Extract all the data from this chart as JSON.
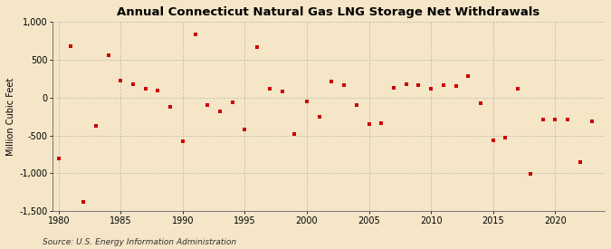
{
  "title": "Annual Connecticut Natural Gas LNG Storage Net Withdrawals",
  "ylabel": "Million Cubic Feet",
  "source": "Source: U.S. Energy Information Administration",
  "background_color": "#f5e6c8",
  "marker_color": "#cc0000",
  "years": [
    1980,
    1981,
    1982,
    1983,
    1984,
    1985,
    1986,
    1987,
    1988,
    1989,
    1990,
    1991,
    1992,
    1993,
    1994,
    1995,
    1996,
    1997,
    1998,
    1999,
    2000,
    2001,
    2002,
    2003,
    2004,
    2005,
    2006,
    2007,
    2008,
    2009,
    2010,
    2011,
    2012,
    2013,
    2014,
    2015,
    2016,
    2017,
    2018,
    2019,
    2020,
    2021,
    2022,
    2023
  ],
  "values": [
    -800,
    680,
    -1380,
    -370,
    560,
    220,
    170,
    120,
    90,
    -120,
    -580,
    830,
    -100,
    -180,
    -60,
    -420,
    660,
    110,
    80,
    -480,
    -50,
    -260,
    210,
    160,
    -100,
    -350,
    -340,
    130,
    180,
    160,
    110,
    160,
    150,
    280,
    -80,
    -560,
    -530,
    110,
    -1010,
    -290,
    -290,
    -290,
    -850,
    -310
  ],
  "xlim": [
    1979.5,
    2024
  ],
  "ylim": [
    -1500,
    1000
  ],
  "yticks": [
    -1500,
    -1000,
    -500,
    0,
    500,
    1000
  ],
  "xticks": [
    1980,
    1985,
    1990,
    1995,
    2000,
    2005,
    2010,
    2015,
    2020
  ],
  "title_fontsize": 9.5,
  "label_fontsize": 7,
  "tick_fontsize": 7,
  "source_fontsize": 6.5
}
